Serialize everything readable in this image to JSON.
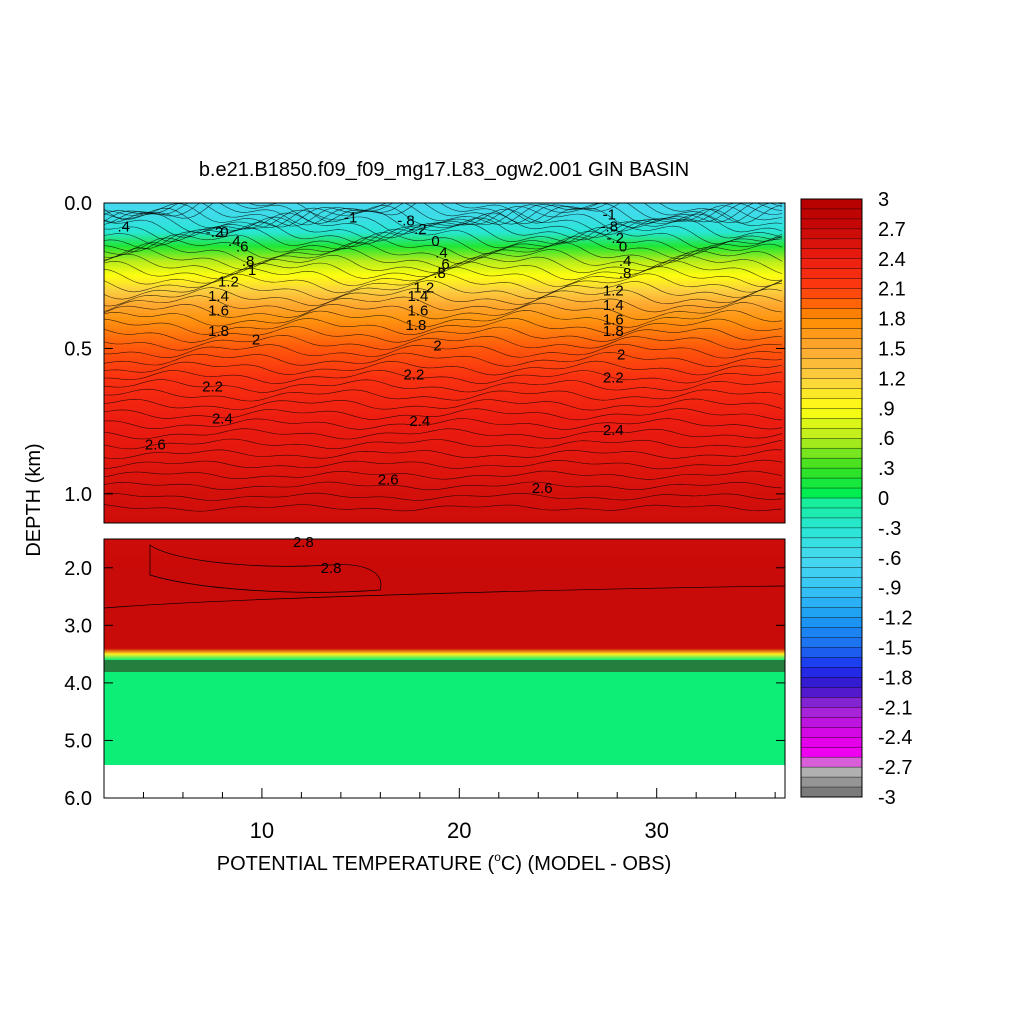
{
  "chart_data": {
    "type": "heatmap",
    "title": "b.e21.B1850.f09_f09_mg17.L83_ogw2.001 GIN BASIN",
    "xlabel_main": "POTENTIAL TEMPERATURE (",
    "xlabel_sup": "o",
    "xlabel_tail": "C) (MODEL - OBS)",
    "ylabel": "DEPTH (km)",
    "xlim": [
      2,
      36.5
    ],
    "x_ticks": [
      "10",
      "20",
      "30"
    ],
    "upper_panel": {
      "ylim": [
        0.0,
        1.1
      ],
      "y_ticks": [
        "0.0",
        "0.5",
        "1.0"
      ]
    },
    "lower_panel": {
      "ylim": [
        1.5,
        6.0
      ],
      "y_ticks": [
        "2.0",
        "3.0",
        "4.0",
        "5.0",
        "6.0"
      ]
    },
    "colorbar": {
      "min": -3,
      "max": 3,
      "step": 0.1,
      "labels": [
        "3",
        "2.7",
        "2.4",
        "2.1",
        "1.8",
        "1.5",
        "1.2",
        ".9",
        ".6",
        ".3",
        "0",
        "-.3",
        "-.6",
        "-.9",
        "-1.2",
        "-1.5",
        "-1.8",
        "-2.1",
        "-2.4",
        "-2.7",
        "-3"
      ]
    },
    "depth_profile": [
      {
        "depth": 0.0,
        "value": -0.6
      },
      {
        "depth": 0.05,
        "value": -0.5
      },
      {
        "depth": 0.1,
        "value": -0.3
      },
      {
        "depth": 0.15,
        "value": 0.2
      },
      {
        "depth": 0.2,
        "value": 0.6
      },
      {
        "depth": 0.25,
        "value": 0.9
      },
      {
        "depth": 0.3,
        "value": 1.2
      },
      {
        "depth": 0.35,
        "value": 1.5
      },
      {
        "depth": 0.4,
        "value": 1.7
      },
      {
        "depth": 0.5,
        "value": 2.0
      },
      {
        "depth": 0.6,
        "value": 2.2
      },
      {
        "depth": 0.75,
        "value": 2.4
      },
      {
        "depth": 0.9,
        "value": 2.5
      },
      {
        "depth": 1.0,
        "value": 2.6
      },
      {
        "depth": 1.1,
        "value": 2.65
      },
      {
        "depth": 2.0,
        "value": 2.7
      },
      {
        "depth": 3.4,
        "value": 2.7
      },
      {
        "depth": 3.5,
        "value": 1.0
      },
      {
        "depth": 3.6,
        "value": 0.0
      },
      {
        "depth": 5.4,
        "value": 0.0
      }
    ],
    "contour_labels": [
      {
        "x": 3.0,
        "depth": 0.08,
        "text": ".4"
      },
      {
        "x": 7.6,
        "depth": 0.1,
        "text": "-.2"
      },
      {
        "x": 8.1,
        "depth": 0.1,
        "text": "0"
      },
      {
        "x": 8.6,
        "depth": 0.13,
        "text": ".4"
      },
      {
        "x": 9.0,
        "depth": 0.15,
        "text": ".6"
      },
      {
        "x": 9.3,
        "depth": 0.2,
        "text": ".8"
      },
      {
        "x": 9.5,
        "depth": 0.23,
        "text": "1"
      },
      {
        "x": 8.3,
        "depth": 0.27,
        "text": "1.2"
      },
      {
        "x": 7.8,
        "depth": 0.32,
        "text": "1.4"
      },
      {
        "x": 7.8,
        "depth": 0.37,
        "text": "1.6"
      },
      {
        "x": 7.8,
        "depth": 0.44,
        "text": "1.8"
      },
      {
        "x": 9.7,
        "depth": 0.47,
        "text": "2"
      },
      {
        "x": 14.5,
        "depth": 0.05,
        "text": "-1"
      },
      {
        "x": 17.3,
        "depth": 0.06,
        "text": "-.8"
      },
      {
        "x": 17.9,
        "depth": 0.09,
        "text": "-.2"
      },
      {
        "x": 18.8,
        "depth": 0.13,
        "text": "0"
      },
      {
        "x": 19.1,
        "depth": 0.17,
        "text": ".4"
      },
      {
        "x": 19.2,
        "depth": 0.21,
        "text": ".6"
      },
      {
        "x": 19.0,
        "depth": 0.24,
        "text": ".8"
      },
      {
        "x": 18.2,
        "depth": 0.29,
        "text": "1.2"
      },
      {
        "x": 17.9,
        "depth": 0.32,
        "text": "1.4"
      },
      {
        "x": 17.9,
        "depth": 0.37,
        "text": "1.6"
      },
      {
        "x": 17.8,
        "depth": 0.42,
        "text": "1.8"
      },
      {
        "x": 18.9,
        "depth": 0.49,
        "text": "2"
      },
      {
        "x": 27.6,
        "depth": 0.04,
        "text": "-1"
      },
      {
        "x": 27.6,
        "depth": 0.08,
        "text": "-.8"
      },
      {
        "x": 27.9,
        "depth": 0.12,
        "text": "-.2"
      },
      {
        "x": 28.3,
        "depth": 0.15,
        "text": "0"
      },
      {
        "x": 28.4,
        "depth": 0.2,
        "text": ".4"
      },
      {
        "x": 28.4,
        "depth": 0.24,
        "text": ".8"
      },
      {
        "x": 27.8,
        "depth": 0.3,
        "text": "1.2"
      },
      {
        "x": 27.8,
        "depth": 0.35,
        "text": "1.4"
      },
      {
        "x": 27.8,
        "depth": 0.4,
        "text": "1.6"
      },
      {
        "x": 27.8,
        "depth": 0.44,
        "text": "1.8"
      },
      {
        "x": 28.2,
        "depth": 0.52,
        "text": "2"
      },
      {
        "x": 7.5,
        "depth": 0.63,
        "text": "2.2"
      },
      {
        "x": 17.7,
        "depth": 0.59,
        "text": "2.2"
      },
      {
        "x": 27.8,
        "depth": 0.6,
        "text": "2.2"
      },
      {
        "x": 8.0,
        "depth": 0.74,
        "text": "2.4"
      },
      {
        "x": 18.0,
        "depth": 0.75,
        "text": "2.4"
      },
      {
        "x": 27.8,
        "depth": 0.78,
        "text": "2.4"
      },
      {
        "x": 4.6,
        "depth": 0.83,
        "text": "2.6"
      },
      {
        "x": 16.4,
        "depth": 0.95,
        "text": "2.6"
      },
      {
        "x": 24.2,
        "depth": 0.98,
        "text": "2.6"
      },
      {
        "x": 12.1,
        "depth": 1.55,
        "text": "2.8"
      },
      {
        "x": 13.5,
        "depth": 2.0,
        "text": "2.8"
      }
    ]
  }
}
